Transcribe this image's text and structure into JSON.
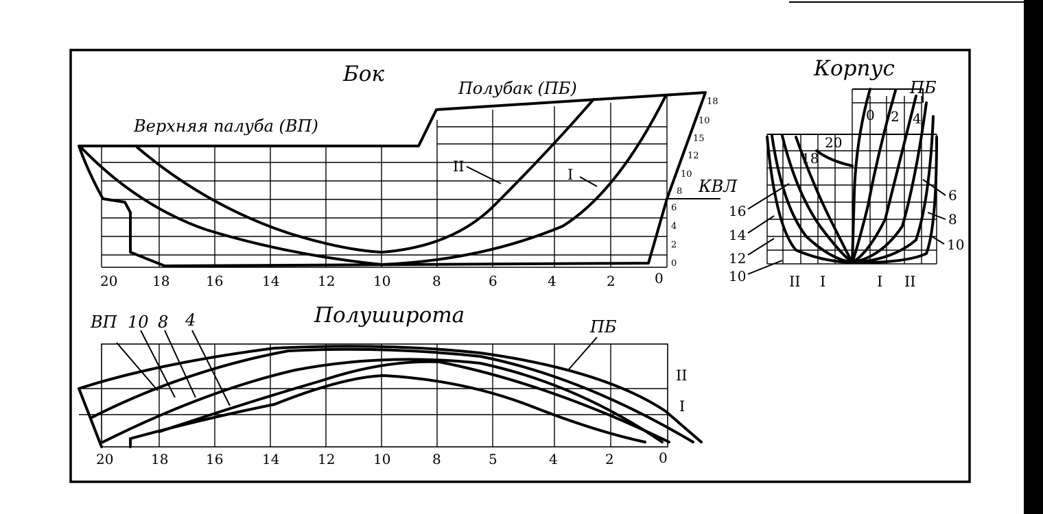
{
  "side_view": {
    "title": "Бок",
    "forecastle_label": "Полубак (ПБ)",
    "upper_deck_label": "Верхняя палуба  (ВП)",
    "waterline_label": "КВЛ",
    "buttock_II": "II",
    "buttock_I": "I",
    "stations": [
      "20",
      "18",
      "16",
      "14",
      "12",
      "10",
      "8",
      "6",
      "4",
      "2",
      "0"
    ],
    "waterlines": [
      "0",
      "2",
      "4",
      "6",
      "8",
      "10",
      "12",
      "15",
      "10",
      "18"
    ]
  },
  "body_plan": {
    "title": "Корпус",
    "forecastle_label": "ПБ",
    "fwd_stations": [
      "0",
      "2",
      "4",
      "6",
      "8",
      "10"
    ],
    "aft_stations": [
      "20",
      "18",
      "16",
      "14",
      "12",
      "10"
    ],
    "buttocks_bottom": [
      "II",
      "I",
      "I",
      "II"
    ]
  },
  "half_breadth": {
    "title": "Полуширота",
    "top_labels": [
      "ВП",
      "10",
      "8",
      "4"
    ],
    "forecastle_label": "ПБ",
    "buttock_II": "II",
    "buttock_I": "I",
    "stations": [
      "20",
      "18",
      "16",
      "14",
      "12",
      "10",
      "8",
      "5",
      "4",
      "2",
      "0"
    ]
  }
}
